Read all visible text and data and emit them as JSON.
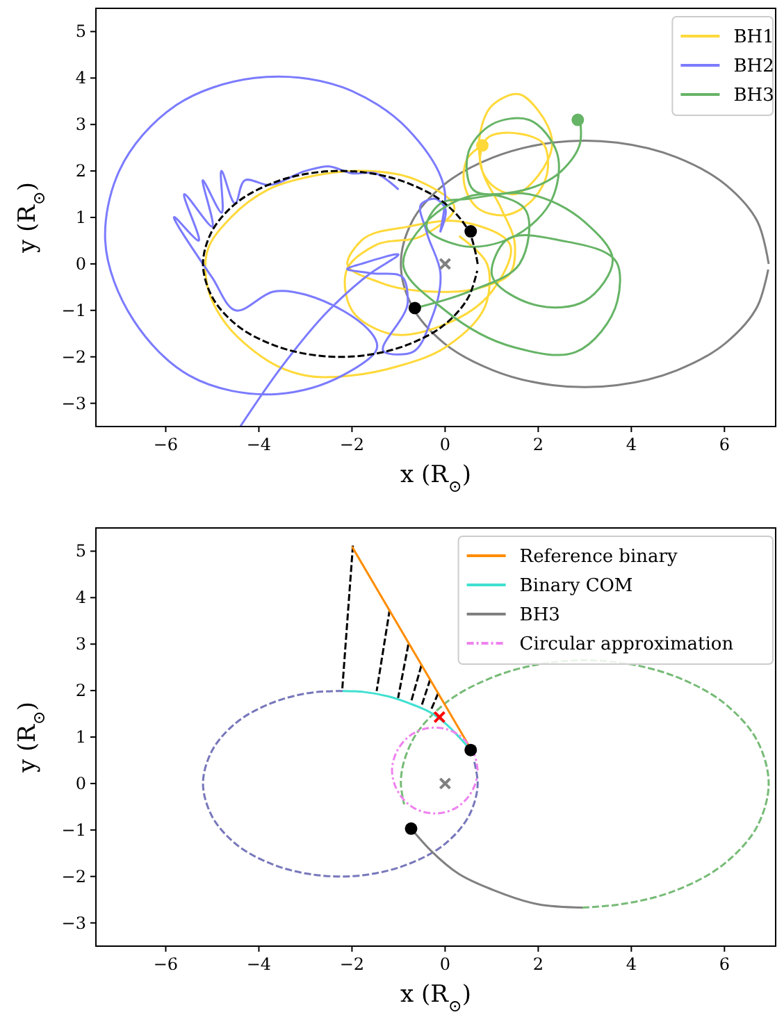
{
  "chart_data": [
    {
      "type": "line",
      "xlabel": "x (R$_{⊙}$)",
      "ylabel": "y (R$_{⊙}$)",
      "xlim": [
        -7.5,
        7.1
      ],
      "ylim": [
        -3.5,
        5.5
      ],
      "xticks": [
        -6,
        -4,
        -2,
        0,
        2,
        4,
        6
      ],
      "yticks": [
        -3,
        -2,
        -1,
        0,
        1,
        2,
        3,
        4,
        5
      ],
      "legend": "top right",
      "series": [
        {
          "color": "#808080",
          "line_style": "solid",
          "x": [
            6.95,
            6.71,
            6.03,
            4.98,
            3.69,
            2.31,
            1.03,
            -0.03,
            -0.71,
            -0.95,
            -0.71,
            -0.03,
            1.03,
            2.31,
            3.69,
            4.98,
            6.03,
            6.71,
            6.94
          ],
          "values": [
            0,
            0.91,
            1.7,
            2.29,
            2.61,
            2.61,
            2.29,
            1.7,
            0.91,
            0,
            -0.91,
            -1.7,
            -2.29,
            -2.61,
            -2.61,
            -2.29,
            -1.7,
            -0.91,
            -0.12
          ]
        },
        {
          "name": "BH1",
          "color": "#ffd93a",
          "line_style": "solid",
          "x": [
            0.8,
            0.5,
            0.4,
            0.7,
            1.3,
            1.9,
            2.2,
            2.1,
            1.6,
            0.9,
            0.75,
            1.0,
            1.5,
            2.0,
            2.3,
            2.0,
            1.6,
            1.0,
            0.75,
            0.8,
            1.2,
            1.5,
            1.4,
            0.8,
            -0.2,
            -1.4,
            -2.1,
            -1.8,
            -0.8,
            0.4,
            1.4,
            1.0,
            0.0,
            -1.2,
            -2.0,
            -2.1,
            -1.5,
            -0.5,
            0.2,
            -0.6,
            -1.7,
            -2.8,
            -3.8,
            -4.6,
            -5.1,
            -5.1,
            -4.7,
            -4.2,
            -3.6,
            -3.0,
            -2.0,
            -1.0,
            0.0,
            0.9,
            0.9,
            0.3
          ],
          "values": [
            2.55,
            2.3,
            1.8,
            1.2,
            1.05,
            1.4,
            2.0,
            2.6,
            2.8,
            2.7,
            2.2,
            1.7,
            1.5,
            1.9,
            2.6,
            3.3,
            3.65,
            3.4,
            2.8,
            2.0,
            1.2,
            0.4,
            -0.2,
            -0.5,
            -0.6,
            -0.4,
            0.0,
            0.5,
            0.8,
            0.9,
            0.4,
            -0.6,
            -1.3,
            -1.5,
            -1.0,
            -0.1,
            0.4,
            0.6,
            1.2,
            1.8,
            2.0,
            1.9,
            1.6,
            1.0,
            0.3,
            -0.5,
            -1.3,
            -1.8,
            -2.2,
            -2.4,
            -2.4,
            -2.2,
            -1.8,
            -0.8,
            0.0,
            0.6
          ]
        },
        {
          "name": "BH2",
          "color": "#7b7bff",
          "line_style": "solid",
          "x": [
            -4.4,
            -3.5,
            -2.5,
            -1.6,
            -1.0,
            -1.8,
            -2.1,
            -1.6,
            -0.9,
            -0.8,
            -1.3,
            -0.7,
            -0.3,
            -0.1,
            -0.4,
            -0.5,
            -0.2,
            0.0,
            -0.1,
            0.0,
            -0.8,
            -2.2,
            -4.1,
            -5.8,
            -7.0,
            -7.3,
            -6.7,
            -5.5,
            -3.6,
            -2.2,
            -1.5,
            -3.7,
            -4.5,
            -5.0,
            -5.8,
            -5.3,
            -5.6,
            -5.0,
            -5.2,
            -4.8,
            -4.8,
            -4.5,
            -4.3,
            -3.8,
            -3.0,
            -2.5,
            -2.0,
            -1.5,
            -1.0
          ],
          "values": [
            -3.5,
            -2.2,
            -1.0,
            -0.2,
            0.2,
            0.0,
            -0.1,
            -0.2,
            -0.3,
            -0.8,
            -1.9,
            -1.9,
            -1.2,
            -0.2,
            0.7,
            1.3,
            1.4,
            1.2,
            0.7,
            1.5,
            2.9,
            3.8,
            4.0,
            3.4,
            2.0,
            0.5,
            -1.2,
            -2.4,
            -2.8,
            -2.4,
            -1.9,
            -0.6,
            -1.0,
            -0.3,
            1.0,
            0.5,
            1.5,
            0.8,
            1.8,
            1.1,
            2.0,
            1.3,
            1.8,
            1.7,
            2.0,
            2.1,
            1.95,
            1.95,
            1.6
          ]
        },
        {
          "name": "BH3",
          "color": "#66b466",
          "line_style": "solid",
          "x": [
            2.9,
            2.9,
            2.5,
            1.5,
            0.6,
            0.5,
            1.0,
            1.8,
            2.4,
            2.3,
            1.5,
            0.3,
            -0.4,
            -0.1,
            0.5,
            1.8,
            3.0,
            3.6,
            3.0,
            2.0,
            1.0,
            1.3,
            2.5,
            3.7,
            3.7,
            2.8,
            1.5,
            0.0,
            -0.9,
            -0.3,
            0.9,
            1.7,
            1.6,
            0.5,
            -0.65
          ],
          "values": [
            3.1,
            2.6,
            2.0,
            1.55,
            1.6,
            2.4,
            3.0,
            3.1,
            2.4,
            1.4,
            0.6,
            0.4,
            0.8,
            1.3,
            1.4,
            1.5,
            0.9,
            0.1,
            -0.8,
            -0.9,
            -0.2,
            0.5,
            0.5,
            0.0,
            -0.8,
            -1.9,
            -1.8,
            -1.0,
            0.0,
            1.0,
            1.5,
            1.2,
            0.0,
            -0.6,
            -0.95
          ]
        },
        {
          "color": "#000000",
          "line_style": "dashed",
          "x": [
            0.7,
            0.52,
            0.01,
            -0.78,
            -1.74,
            -2.76,
            -3.73,
            -4.51,
            -5.02,
            -5.2,
            -5.02,
            -4.51,
            -3.73,
            -2.76,
            -1.74,
            -0.78,
            0.01,
            0.52,
            0.69
          ],
          "values": [
            0,
            0.68,
            1.29,
            1.73,
            1.97,
            1.97,
            1.73,
            1.29,
            0.68,
            0,
            -0.68,
            -1.29,
            -1.73,
            -1.97,
            -1.97,
            -1.73,
            -1.29,
            -0.68,
            -0.15
          ]
        },
        {
          "type": "scatter",
          "color": "#ffd93a",
          "marker": "circle",
          "x": [
            0.8
          ],
          "values": [
            2.55
          ]
        },
        {
          "type": "scatter",
          "color": "#66b466",
          "marker": "circle",
          "x": [
            2.85
          ],
          "values": [
            3.1
          ]
        },
        {
          "type": "scatter",
          "color": "#000000",
          "marker": "circle",
          "x": [
            0.55,
            -0.65
          ],
          "values": [
            0.7,
            -0.95
          ]
        },
        {
          "type": "scatter",
          "color": "#808080",
          "marker": "cross",
          "x": [
            0
          ],
          "values": [
            0
          ]
        }
      ]
    },
    {
      "type": "line",
      "xlabel": "x (R$_{⊙}$)",
      "ylabel": "y (R$_{⊙}$)",
      "xlim": [
        -7.5,
        7.1
      ],
      "ylim": [
        -3.5,
        5.5
      ],
      "xticks": [
        -6,
        -4,
        -2,
        0,
        2,
        4,
        6
      ],
      "yticks": [
        -3,
        -2,
        -1,
        0,
        1,
        2,
        3,
        4,
        5
      ],
      "legend": "top right",
      "series": [
        {
          "color": "#7777bb",
          "line_style": "dashed",
          "x": [
            -2.2,
            -2.76,
            -3.73,
            -4.51,
            -5.02,
            -5.2,
            -5.02,
            -4.51,
            -3.73,
            -2.76,
            -1.74,
            -0.78,
            0.01,
            0.52,
            0.7,
            0.62
          ],
          "values": [
            1.99,
            1.97,
            1.73,
            1.29,
            0.68,
            0,
            -0.68,
            -1.29,
            -1.73,
            -1.97,
            -1.97,
            -1.73,
            -1.29,
            -0.68,
            0,
            0.5
          ]
        },
        {
          "color": "#77bb77",
          "line_style": "dashed",
          "x": [
            2.95,
            3.69,
            4.98,
            6.03,
            6.71,
            6.95,
            6.71,
            6.03,
            4.98,
            3.69,
            2.31,
            1.03,
            -0.03,
            -0.71,
            -0.95,
            -0.88
          ],
          "values": [
            -2.67,
            -2.61,
            -2.29,
            -1.7,
            -0.91,
            0,
            0.91,
            1.7,
            2.29,
            2.61,
            2.61,
            2.29,
            1.7,
            0.91,
            0,
            -0.45
          ]
        },
        {
          "color": "#000000",
          "line_style": "dashed",
          "x": [
            -1.98,
            -2.21,
            null,
            -1.19,
            -1.47,
            null,
            -0.79,
            -1.01,
            null,
            -0.51,
            -0.73,
            null,
            -0.32,
            -0.5,
            null,
            -0.15,
            -0.3
          ],
          "values": [
            5.12,
            2.01,
            null,
            3.74,
            1.99,
            null,
            2.99,
            1.84,
            null,
            2.54,
            1.76,
            null,
            2.24,
            1.69,
            null,
            1.94,
            1.59
          ]
        },
        {
          "name": "Reference binary",
          "color": "#ff8c00",
          "line_style": "solid",
          "x": [
            -2.0,
            0.55
          ],
          "values": [
            5.1,
            0.75
          ]
        },
        {
          "name": "Binary COM",
          "color": "#40e0d0",
          "line_style": "solid",
          "x": [
            -2.2,
            -1.74,
            -1.2,
            -0.78,
            -0.3,
            0.01,
            0.3,
            0.55
          ],
          "values": [
            1.99,
            1.97,
            1.87,
            1.73,
            1.52,
            1.29,
            1.0,
            0.72
          ]
        },
        {
          "name": "BH3",
          "color": "#808080",
          "line_style": "solid",
          "x": [
            -0.73,
            -0.3,
            0.3,
            1.03,
            2.0,
            2.95
          ],
          "values": [
            -0.97,
            -1.45,
            -1.95,
            -2.29,
            -2.6,
            -2.67
          ]
        },
        {
          "name": "Circular approximation",
          "color": "#ee82ee",
          "line_style": "dashdot",
          "x": [
            0.7,
            0.64,
            0.48,
            0.24,
            -0.06,
            -0.38,
            -0.68,
            -0.92,
            -1.08,
            -1.14,
            -1.08,
            -0.92,
            -0.68,
            -0.38,
            -0.06,
            0.24,
            0.48,
            0.64,
            0.69
          ],
          "values": [
            0.28,
            0.59,
            0.87,
            1.08,
            1.19,
            1.19,
            1.08,
            0.87,
            0.59,
            0.28,
            -0.03,
            -0.31,
            -0.52,
            -0.63,
            -0.63,
            -0.52,
            -0.31,
            -0.03,
            0.15
          ]
        },
        {
          "type": "scatter",
          "color": "#ff0000",
          "marker": "cross",
          "x": [
            -0.12
          ],
          "values": [
            1.43
          ]
        },
        {
          "type": "scatter",
          "color": "#000000",
          "marker": "circle",
          "x": [
            0.55,
            -0.73
          ],
          "values": [
            0.72,
            -0.97
          ]
        },
        {
          "type": "scatter",
          "color": "#808080",
          "marker": "cross",
          "x": [
            0
          ],
          "values": [
            0
          ]
        }
      ]
    }
  ]
}
